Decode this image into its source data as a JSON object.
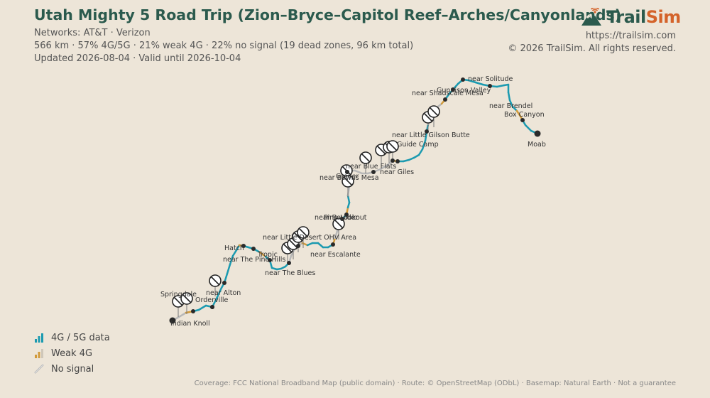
{
  "title": "Utah Mighty 5 Road Trip (Zion–Bryce–Capitol Reef–Arches/Canyonlands)",
  "networks": "Networks: AT&T · Verizon",
  "stats": "566 km · 57% 4G/5G · 21% weak 4G · 22% no signal (19 dead zones, 96 km total)",
  "updated": "Updated 2026-08-04 · Valid until 2026-10-04",
  "brand": {
    "name_part1": "Trail",
    "name_part2": "Sim",
    "url": "https://trailsim.com",
    "copyright": "© 2026 TrailSim. All rights reserved.",
    "logo_icon": "mountain-signal-logo"
  },
  "legend": [
    {
      "label": "4G / 5G data",
      "color": "#1b9ab0",
      "icon": "signal-bars-icon"
    },
    {
      "label": "Weak 4G",
      "color": "#d19a3a",
      "icon": "weak-signal-bars-icon"
    },
    {
      "label": "No signal",
      "color": "#b8b8b8",
      "icon": "no-signal-slash-icon"
    }
  ],
  "footer": "Coverage: FCC National Broadband Map (public domain) · Route: © OpenStreetMap (ODbL) · Basemap: Natural Earth · Not a guarantee",
  "colors": {
    "good": "#1b9ab0",
    "weak": "#d19a3a",
    "none": "#b8b8b8",
    "title": "#2b5a4d",
    "accent": "#d4632a"
  },
  "places": [
    "Springdale",
    "Indian Knoll",
    "Orderville",
    "near Alton",
    "Hatch",
    "near The Pine Hills",
    "Tropic",
    "near The Blues",
    "near Little Desert OHV Area",
    "near Escalante",
    "near Boulder",
    "Pine Lookout",
    "near Bowns Mesa",
    "Grover",
    "near Blue Flats",
    "near Giles",
    "Guide Camp",
    "near Little Gilson Butte",
    "near Shadscale Mesa",
    "Gunnison Valley",
    "near Solitude",
    "near Brendel",
    "Box Canyon",
    "Moab"
  ]
}
